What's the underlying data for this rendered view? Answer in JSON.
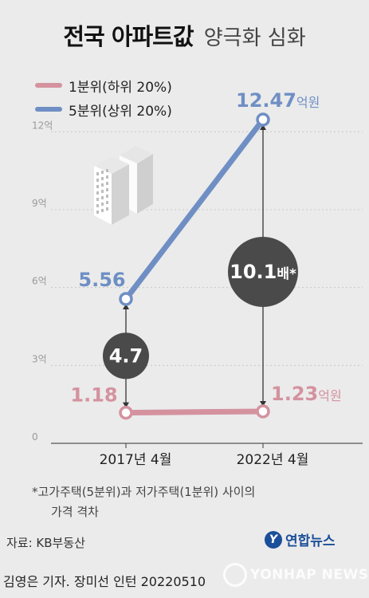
{
  "title": {
    "bold": "전국 아파트값",
    "light": "양극화 심화"
  },
  "chart_data": {
    "type": "line",
    "categories": [
      "2017년 4월",
      "2022년 4월"
    ],
    "series": [
      {
        "name": "1분위(하위 20%)",
        "color": "#d4929f",
        "values": [
          1.18,
          1.23
        ]
      },
      {
        "name": "5분위(상위 20%)",
        "color": "#6f8fc4",
        "values": [
          5.56,
          12.47
        ]
      }
    ],
    "y_ticks": [
      "0",
      "3억",
      "6억",
      "9억",
      "12억"
    ],
    "y_tick_values": [
      0,
      3,
      6,
      9,
      12
    ],
    "ylim": [
      0,
      12.47
    ],
    "value_labels": {
      "low_start": "1.18",
      "low_end": "1.23",
      "low_end_unit": "억원",
      "high_start": "5.56",
      "high_end": "12.47",
      "high_end_unit": "억원"
    },
    "gap_badges": [
      {
        "value": "4.7",
        "suffix": ""
      },
      {
        "value": "10.1",
        "suffix": "배*"
      }
    ],
    "grid": true,
    "legend": "top-left"
  },
  "footnote": {
    "line1": "*고가주택(5분위)과 저가주택(1분위) 사이의",
    "line2": "가격 격차"
  },
  "source": "자료: KB부동산",
  "logo": {
    "text": "연합뉴스"
  },
  "credit": "김영은 기자. 장미선 인턴  20220510",
  "watermark": "YONHAP NEWS"
}
